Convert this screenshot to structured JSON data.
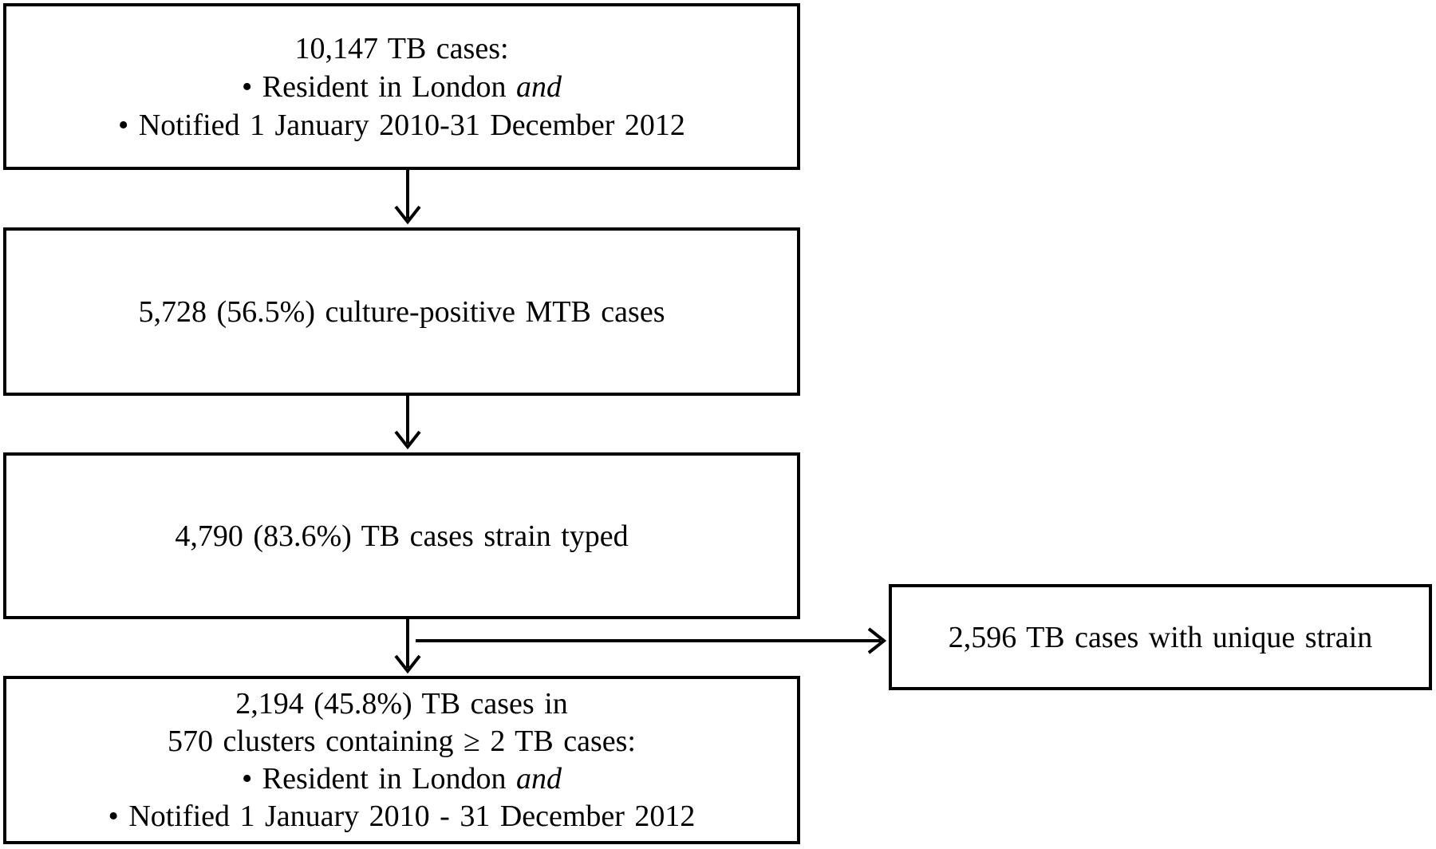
{
  "boxes": {
    "total_cases": {
      "heading": "10,147 TB cases:",
      "criterion_1_prefix": "• Resident in London",
      "criterion_1_emph": "and",
      "criterion_2": "• Notified 1 January 2010-31 December 2012"
    },
    "culture_positive": {
      "text": "5,728 (56.5%) culture-positive MTB cases"
    },
    "strain_typed": {
      "text": "4,790 (83.6%) TB cases strain typed"
    },
    "clustered": {
      "line_1": "2,194 (45.8%) TB cases in",
      "line_2": "570 clusters containing ≥ 2 TB cases:",
      "criterion_1_prefix": "• Resident in London",
      "criterion_1_emph": "and",
      "criterion_2": "• Notified 1 January 2010 - 31 December 2012"
    },
    "unique_strain": {
      "text": "2,596 TB cases with unique strain"
    }
  },
  "colors": {
    "stroke": "#000000",
    "background": "#ffffff"
  }
}
